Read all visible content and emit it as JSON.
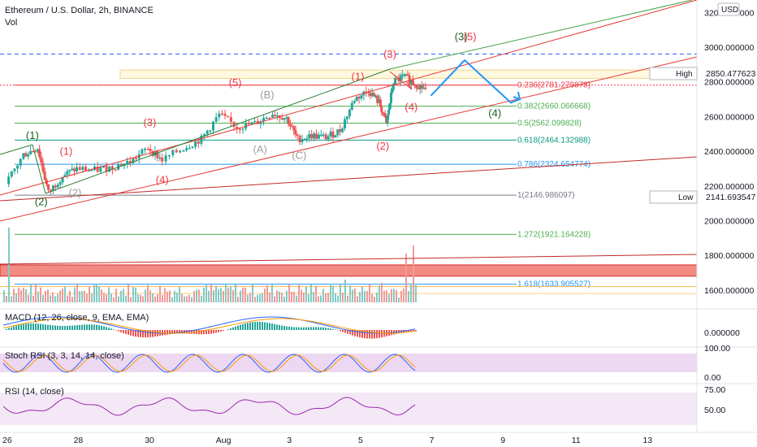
{
  "title": "Ethereum / U.S. Dollar, 2h, BINANCE",
  "vol_label": "Vol",
  "currency": "USD",
  "price_axis": [
    "3200.000000",
    "3000.000000",
    "2800.000000",
    "2600.000000",
    "2400.000000",
    "2200.000000",
    "2000.000000",
    "1800.000000",
    "1600.000000"
  ],
  "high": {
    "label": "High",
    "value": "2850.477623"
  },
  "low": {
    "label": "Low",
    "value": "2141.693547"
  },
  "fib_levels": [
    {
      "text": "0.236(2781.279878)",
      "price": 2781.28,
      "color": "#f23645"
    },
    {
      "text": "0.382(2660.066668)",
      "price": 2660.07,
      "color": "#4caf50"
    },
    {
      "text": "0.5(2562.099828)",
      "price": 2562.1,
      "color": "#4caf50"
    },
    {
      "text": "0.618(2464.132988)",
      "price": 2464.13,
      "color": "#089981"
    },
    {
      "text": "0.786(2324.654774)",
      "price": 2324.65,
      "color": "#2196f3"
    },
    {
      "text": "1(2146.986097)",
      "price": 2146.99,
      "color": "#787b86"
    },
    {
      "text": "1.272(1921.164228)",
      "price": 1921.16,
      "color": "#4caf50"
    },
    {
      "text": "1.618(1633.905527)",
      "price": 1633.91,
      "color": "#2196f3"
    }
  ],
  "x_axis": [
    {
      "label": "26",
      "day": 0
    },
    {
      "label": "28",
      "day": 2
    },
    {
      "label": "30",
      "day": 4
    },
    {
      "label": "Aug",
      "day": 6
    },
    {
      "label": "3",
      "day": 8
    },
    {
      "label": "5",
      "day": 10
    },
    {
      "label": "7",
      "day": 12
    },
    {
      "label": "9",
      "day": 14
    },
    {
      "label": "11",
      "day": 16
    },
    {
      "label": "13",
      "day": 18
    }
  ],
  "waves": [
    {
      "t": "(1)",
      "color": "#1b5e20",
      "day": 0.75,
      "price": 2470
    },
    {
      "t": "(2)",
      "color": "#1b5e20",
      "day": 1.0,
      "price": 2090
    },
    {
      "t": "(1)",
      "color": "#f23645",
      "day": 1.7,
      "price": 2380
    },
    {
      "t": "(2)",
      "color": "#9e9e9e",
      "day": 1.95,
      "price": 2140
    },
    {
      "t": "(3)",
      "color": "#f23645",
      "day": 4.05,
      "price": 2545
    },
    {
      "t": "(4)",
      "color": "#f23645",
      "day": 4.4,
      "price": 2215
    },
    {
      "t": "(5)",
      "color": "#f23645",
      "day": 6.45,
      "price": 2775
    },
    {
      "t": "(B)",
      "color": "#9e9e9e",
      "day": 7.35,
      "price": 2705
    },
    {
      "t": "(A)",
      "color": "#9e9e9e",
      "day": 7.15,
      "price": 2390
    },
    {
      "t": "(C)",
      "color": "#9e9e9e",
      "day": 8.25,
      "price": 2355
    },
    {
      "t": "(1)",
      "color": "#f23645",
      "day": 9.9,
      "price": 2810
    },
    {
      "t": "(3)",
      "color": "#f23645",
      "day": 10.8,
      "price": 2940
    },
    {
      "t": "(4)",
      "color": "#f23645",
      "day": 11.4,
      "price": 2635
    },
    {
      "t": "(2)",
      "color": "#f23645",
      "day": 10.6,
      "price": 2410
    },
    {
      "t": "(3)",
      "color": "#1b5e20",
      "day": 12.8,
      "price": 3040
    },
    {
      "t": "(5)",
      "color": "#f23645",
      "day": 13.05,
      "price": 3040
    },
    {
      "t": "(4)",
      "color": "#1b5e20",
      "day": 13.75,
      "price": 2600
    }
  ],
  "macd": {
    "label": "MACD (12, 26, close, 9, EMA, EMA)",
    "value": "0.000000"
  },
  "stoch": {
    "label": "Stoch RSI (3, 3, 14, 14, close)",
    "axis": [
      "100.00",
      "0.00"
    ]
  },
  "rsi": {
    "label": "RSI (14, close)",
    "axis": [
      "75.00",
      "50.00"
    ]
  },
  "colors": {
    "up": "#26a69a",
    "down": "#ef5350",
    "red_line": "#d32f2f",
    "green_line": "#43a047",
    "projection": "#2196f3",
    "osc_band": "#e1bee7"
  },
  "chart_data": {
    "type": "candlestick",
    "title": "Ethereum / U.S. Dollar, 2h, BINANCE",
    "price_range": [
      1470,
      3260
    ],
    "ohlc_approx": [
      {
        "day": 0.0,
        "close": 2210
      },
      {
        "day": 0.5,
        "close": 2380
      },
      {
        "day": 0.9,
        "close": 2420
      },
      {
        "day": 1.2,
        "close": 2160
      },
      {
        "day": 1.6,
        "close": 2260
      },
      {
        "day": 2.0,
        "close": 2300
      },
      {
        "day": 2.5,
        "close": 2290
      },
      {
        "day": 3.0,
        "close": 2310
      },
      {
        "day": 3.5,
        "close": 2340
      },
      {
        "day": 4.0,
        "close": 2420
      },
      {
        "day": 4.4,
        "close": 2350
      },
      {
        "day": 5.0,
        "close": 2420
      },
      {
        "day": 5.5,
        "close": 2470
      },
      {
        "day": 6.0,
        "close": 2610
      },
      {
        "day": 6.5,
        "close": 2540
      },
      {
        "day": 7.0,
        "close": 2560
      },
      {
        "day": 7.5,
        "close": 2620
      },
      {
        "day": 7.9,
        "close": 2590
      },
      {
        "day": 8.2,
        "close": 2470
      },
      {
        "day": 8.6,
        "close": 2490
      },
      {
        "day": 9.0,
        "close": 2480
      },
      {
        "day": 9.4,
        "close": 2520
      },
      {
        "day": 9.8,
        "close": 2700
      },
      {
        "day": 10.2,
        "close": 2750
      },
      {
        "day": 10.5,
        "close": 2680
      },
      {
        "day": 10.7,
        "close": 2560
      },
      {
        "day": 10.9,
        "close": 2800
      },
      {
        "day": 11.2,
        "close": 2830
      },
      {
        "day": 11.5,
        "close": 2790
      },
      {
        "day": 11.8,
        "close": 2760
      }
    ],
    "projection": [
      {
        "day": 11.95,
        "price": 2720
      },
      {
        "day": 12.9,
        "price": 2925
      },
      {
        "day": 14.2,
        "price": 2680
      },
      {
        "day": 14.45,
        "price": 2700
      }
    ]
  }
}
